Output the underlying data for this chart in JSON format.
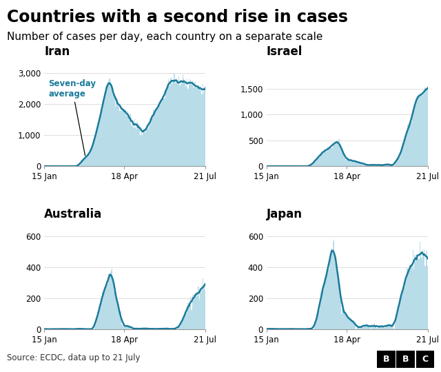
{
  "title": "Countries with a second rise in cases",
  "subtitle": "Number of cases per day, each country on a separate scale",
  "source": "Source: ECDC, data up to 21 July",
  "legend_label": "Seven-day\naverage",
  "countries": [
    "Iran",
    "Israel",
    "Australia",
    "Japan"
  ],
  "bar_color": "#b8dce8",
  "line_color": "#1a7a9a",
  "annotation_color": "#1a7a9a",
  "x_ticks": [
    "15 Jan",
    "18 Apr",
    "21 Jul"
  ],
  "ylims": {
    "Iran": [
      0,
      3500
    ],
    "Israel": [
      0,
      2100
    ],
    "Australia": [
      0,
      700
    ],
    "Japan": [
      0,
      700
    ]
  },
  "yticks": {
    "Iran": [
      0,
      1000,
      2000,
      3000
    ],
    "Israel": [
      0,
      500,
      1000,
      1500
    ],
    "Australia": [
      0,
      200,
      400,
      600
    ],
    "Japan": [
      0,
      200,
      400,
      600
    ]
  },
  "background_color": "#ffffff",
  "grid_color": "#dddddd",
  "title_fontsize": 17,
  "subtitle_fontsize": 11,
  "country_fontsize": 12,
  "tick_fontsize": 8.5,
  "n_days": 188
}
